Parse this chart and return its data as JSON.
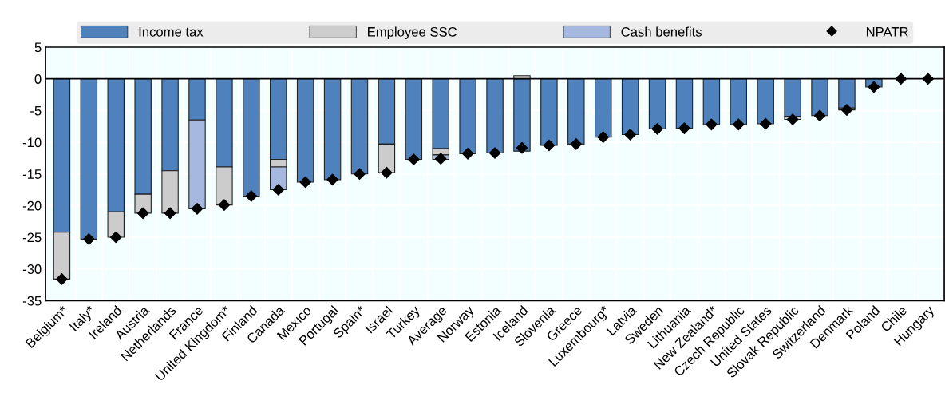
{
  "chart_data": {
    "type": "bar",
    "stacked": true,
    "categories": [
      "Belgium*",
      "Italy*",
      "Ireland",
      "Austria",
      "Netherlands",
      "France",
      "United Kingdom*",
      "Finland",
      "Canada",
      "Mexico",
      "Portugal",
      "Spain*",
      "Israel",
      "Turkey",
      "Average",
      "Norway",
      "Estonia",
      "Iceland",
      "Slovenia",
      "Greece",
      "Luxembourg*",
      "Latvia",
      "Sweden",
      "Lithuania",
      "New Zealand*",
      "Czech Republic",
      "United States",
      "Slovak Republic",
      "Switzerland",
      "Denmark",
      "Poland",
      "Chile",
      "Hungary"
    ],
    "series": [
      {
        "name": "Income tax",
        "color": "#4f81bd",
        "values": [
          -24.2,
          -25.3,
          -21.0,
          -18.2,
          -14.5,
          -6.5,
          -13.9,
          -18.5,
          -12.7,
          -16.3,
          -15.9,
          -15.0,
          -10.3,
          -12.7,
          -11.0,
          -11.8,
          -11.7,
          -11.4,
          -10.5,
          -10.3,
          -9.2,
          -8.8,
          -7.9,
          -7.8,
          -7.2,
          -7.2,
          -7.1,
          -5.9,
          -5.8,
          -4.6,
          -1.3,
          null,
          null
        ]
      },
      {
        "name": "Employee SSC",
        "color": "#cccccc",
        "values": [
          -7.4,
          null,
          -4.0,
          -3.0,
          -6.7,
          null,
          -6.0,
          null,
          -1.2,
          null,
          null,
          null,
          -4.5,
          null,
          -1.0,
          null,
          null,
          0.5,
          null,
          null,
          null,
          null,
          null,
          null,
          null,
          null,
          null,
          -0.5,
          null,
          -0.3,
          null,
          null,
          null
        ]
      },
      {
        "name": "Cash benefits",
        "color": "#a6b8e0",
        "values": [
          null,
          null,
          null,
          null,
          null,
          -14.0,
          null,
          null,
          -3.6,
          null,
          null,
          null,
          null,
          null,
          -0.7,
          null,
          null,
          null,
          null,
          null,
          null,
          null,
          null,
          null,
          null,
          null,
          null,
          null,
          null,
          null,
          null,
          null,
          null
        ]
      },
      {
        "name": "NPATR",
        "type": "scatter",
        "color": "#000000",
        "marker": "diamond",
        "values": [
          -31.6,
          -25.3,
          -25.0,
          -21.2,
          -21.2,
          -20.5,
          -19.9,
          -18.5,
          -17.5,
          -16.3,
          -15.9,
          -15.0,
          -14.8,
          -12.7,
          -12.6,
          -11.8,
          -11.7,
          -10.9,
          -10.5,
          -10.3,
          -9.2,
          -8.8,
          -7.9,
          -7.8,
          -7.2,
          -7.2,
          -7.1,
          -6.4,
          -5.8,
          -4.9,
          -1.3,
          0,
          0
        ]
      }
    ],
    "ylim": [
      -35,
      5
    ],
    "yticks": [
      -35,
      -30,
      -25,
      -20,
      -15,
      -10,
      -5,
      0,
      5
    ],
    "grid": true,
    "legend": "top"
  }
}
